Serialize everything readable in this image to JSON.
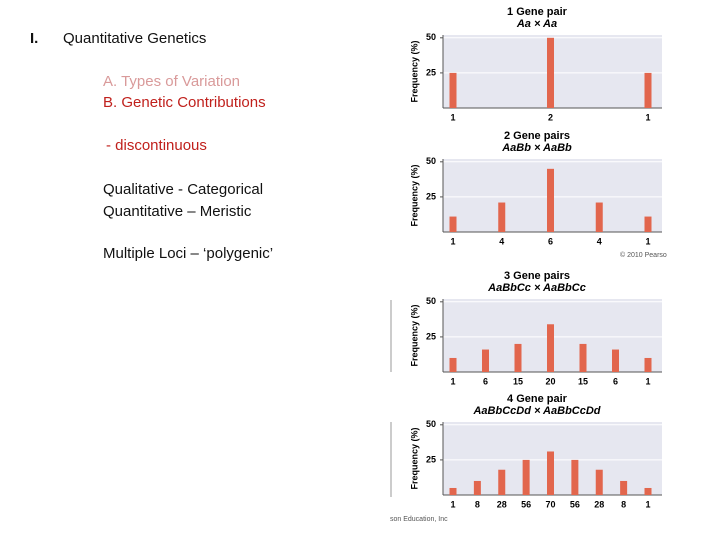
{
  "slide": {
    "numeral": "I.",
    "heading": "Quantitative Genetics",
    "item_a": "A.  Types of Variation",
    "item_b": "B. Genetic Contributions",
    "sub": "- discontinuous",
    "line1": "Qualitative - Categorical",
    "line2": "Quantitative – Meristic",
    "line3": "Multiple Loci – ‘polygenic’",
    "credit_top": "© 2010 Pearso",
    "credit_bottom": "son Education, Inc"
  },
  "chart_data": [
    {
      "type": "bar",
      "title": "1 Gene pair",
      "subtitle": "Aa  ×  Aa",
      "y_label": "Frequency (%)",
      "categories": [
        "1",
        "2",
        "1"
      ],
      "values": [
        25,
        50,
        25
      ],
      "color": "#e2664d",
      "ylim": [
        0,
        52
      ],
      "yticks": [
        25,
        50
      ],
      "grid": true
    },
    {
      "type": "bar",
      "title": "2 Gene pairs",
      "subtitle": "AaBb  ×  AaBb",
      "y_label": "Frequency (%)",
      "categories": [
        "1",
        "4",
        "6",
        "4",
        "1"
      ],
      "values": [
        11,
        21,
        45,
        21,
        11
      ],
      "color": "#e2664d",
      "ylim": [
        0,
        52
      ],
      "yticks": [
        25,
        50
      ],
      "grid": true
    },
    {
      "type": "bar",
      "title": "3 Gene pairs",
      "subtitle": "AaBbCc  ×  AaBbCc",
      "y_label": "Frequency (%)",
      "categories": [
        "1",
        "6",
        "15",
        "20",
        "15",
        "6",
        "1"
      ],
      "values": [
        10,
        16,
        20,
        34,
        20,
        16,
        10
      ],
      "color": "#e2664d",
      "ylim": [
        0,
        52
      ],
      "yticks": [
        25,
        50
      ],
      "grid": true
    },
    {
      "type": "bar",
      "title": "4 Gene pair",
      "subtitle": "AaBbCcDd  ×  AaBbCcDd",
      "y_label": "Frequency (%)",
      "categories": [
        "1",
        "8",
        "28",
        "56",
        "70",
        "56",
        "28",
        "8",
        "1"
      ],
      "values": [
        5,
        10,
        18,
        25,
        31,
        25,
        18,
        10,
        5
      ],
      "color": "#e2664d",
      "ylim": [
        0,
        52
      ],
      "yticks": [
        25,
        50
      ],
      "grid": true
    }
  ]
}
